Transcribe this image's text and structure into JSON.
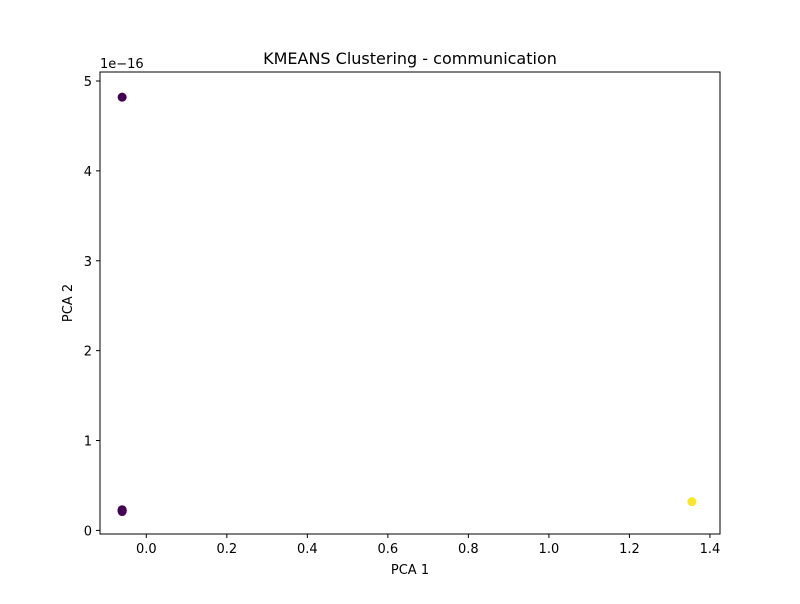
{
  "chart_data": {
    "type": "scatter",
    "title": "KMEANS Clustering - communication",
    "xlabel": "PCA 1",
    "ylabel": "PCA 2",
    "y_offset_label": "1e−16",
    "xlim": [
      -0.115,
      1.425
    ],
    "ylim": [
      -0.04,
      5.1
    ],
    "xticks": [
      0.0,
      0.2,
      0.4,
      0.6,
      0.8,
      1.0,
      1.2,
      1.4
    ],
    "xtick_labels": [
      "0.0",
      "0.2",
      "0.4",
      "0.6",
      "0.8",
      "1.0",
      "1.2",
      "1.4"
    ],
    "yticks": [
      0,
      1,
      2,
      3,
      4,
      5
    ],
    "ytick_labels": [
      "0",
      "1",
      "2",
      "3",
      "4",
      "5"
    ],
    "grid": false,
    "points": [
      {
        "x": -0.06,
        "y": 4.82,
        "cluster": 0
      },
      {
        "x": -0.06,
        "y": 0.22,
        "cluster": 0
      },
      {
        "x": -0.06,
        "y": 0.22,
        "cluster": 0
      },
      {
        "x": -0.06,
        "y": 0.22,
        "cluster": 0
      },
      {
        "x": -0.06,
        "y": 0.21,
        "cluster": 0
      },
      {
        "x": -0.06,
        "y": 0.23,
        "cluster": 0
      },
      {
        "x": 1.355,
        "y": 0.32,
        "cluster": 1
      }
    ],
    "cluster_colors": [
      "#440154",
      "#fde725"
    ]
  }
}
